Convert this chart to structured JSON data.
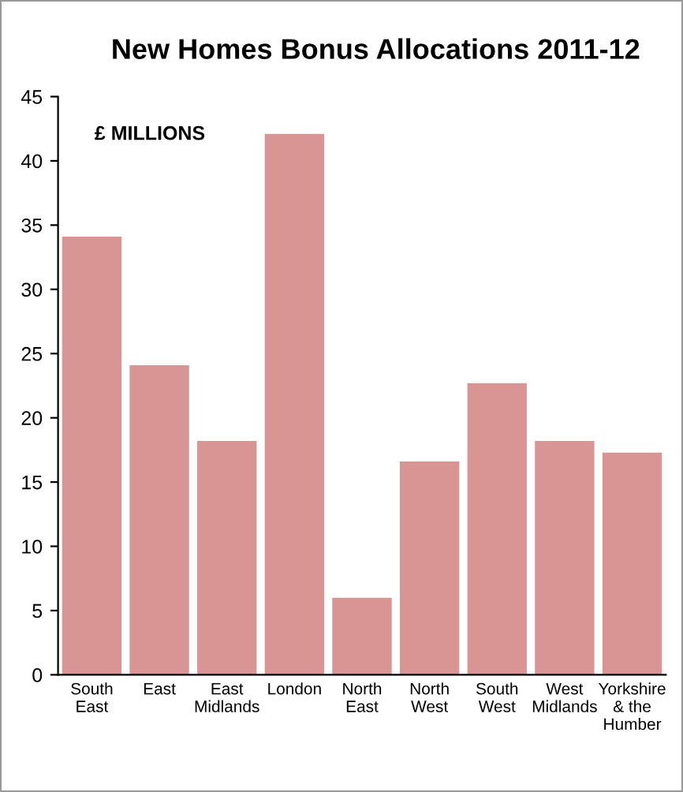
{
  "chart_data": {
    "type": "bar",
    "title": "New Homes Bonus Allocations 2011-12",
    "categories": [
      "South\nEast",
      "East",
      "East\nMidlands",
      "London",
      "North\nEast",
      "North\nWest",
      "South\nWest",
      "West\nMidlands",
      "Yorkshire\n& the\nHumber"
    ],
    "values": [
      34.1,
      24.1,
      18.2,
      42.1,
      6.0,
      16.6,
      22.7,
      18.2,
      17.3
    ],
    "color": "#d99594",
    "ylim": [
      0,
      45
    ],
    "yticks": [
      0,
      5,
      10,
      15,
      20,
      25,
      30,
      35,
      40,
      45
    ],
    "annotations": [
      "£ MILLIONS"
    ],
    "grid": false,
    "legend": false
  }
}
